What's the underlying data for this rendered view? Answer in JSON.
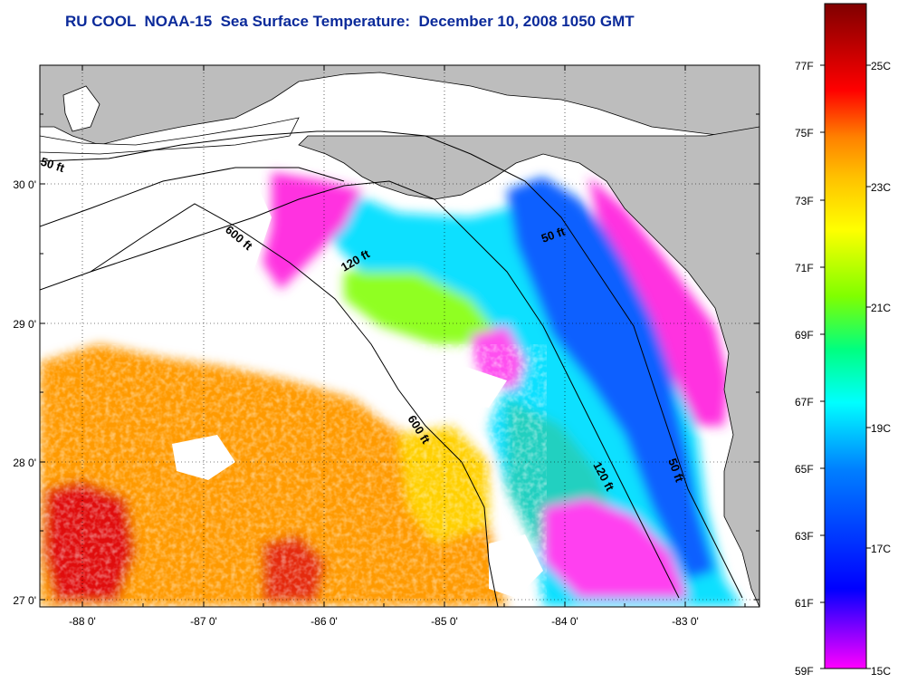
{
  "title": "RU COOL  NOAA-15  Sea Surface Temperature:  December 10, 2008 1050 GMT",
  "colors": {
    "land": "#bdbdbd",
    "cloud": "#ffffff",
    "title": "#0b2a9a",
    "scale": [
      "#ff00ff",
      "#8000ff",
      "#0000ff",
      "#0080ff",
      "#00ffff",
      "#00ff80",
      "#80ff00",
      "#ffff00",
      "#ffc000",
      "#ff8000",
      "#ff0000",
      "#b00000",
      "#800000"
    ]
  },
  "map": {
    "lon_labels": [
      "-88 0'",
      "-87 0'",
      "-86 0'",
      "-85 0'",
      "-84 0'",
      "-83 0'"
    ],
    "lat_labels": [
      "30 0'",
      "29 0'",
      "28 0'",
      "27 0'"
    ],
    "contours": {
      "c50": "50 ft",
      "c120": "120 ft",
      "c600": "600 ft",
      "c50b": "50 ft",
      "c120b": "120 ft",
      "c600b": "600 ft",
      "c50c": "50 ft"
    }
  },
  "colorbar": {
    "f_labels": [
      "77F",
      "75F",
      "73F",
      "71F",
      "69F",
      "67F",
      "65F",
      "63F",
      "61F",
      "59F"
    ],
    "c_labels": [
      "25C",
      "23C",
      "21C",
      "19C",
      "17C",
      "15C"
    ]
  }
}
